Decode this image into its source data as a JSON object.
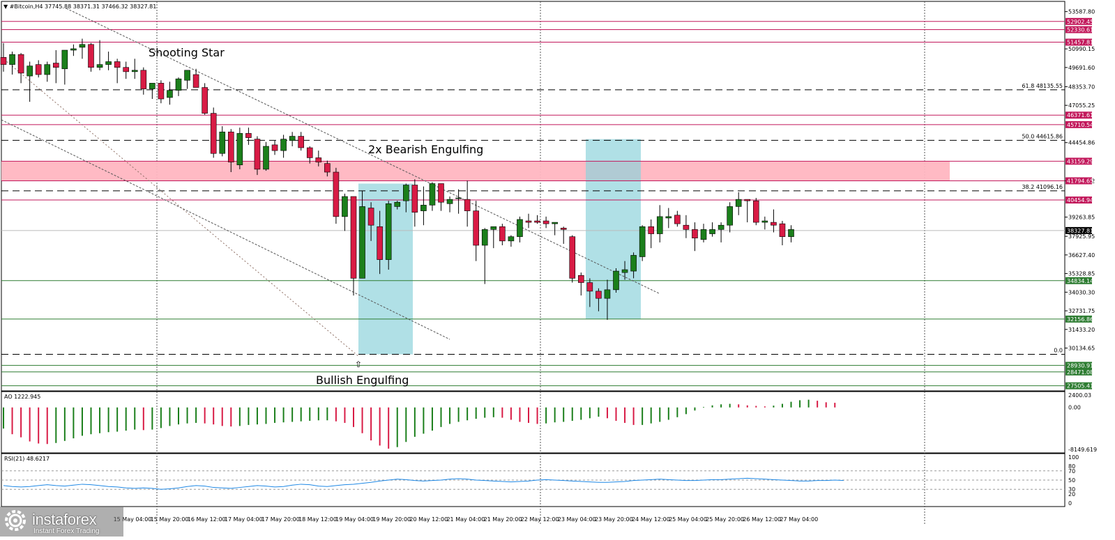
{
  "chart_data": {
    "type": "candlestick",
    "header": "#Bitcoin,H4  37745.88 38371.31 37466.32 38327.81",
    "time_labels": [
      "15 May 04:00",
      "15 May 20:00",
      "16 May 12:00",
      "17 May 04:00",
      "17 May 20:00",
      "18 May 12:00",
      "19 May 04:00",
      "19 May 20:00",
      "20 May 12:00",
      "21 May 04:00",
      "21 May 20:00",
      "22 May 12:00",
      "23 May 04:00",
      "23 May 20:00",
      "24 May 12:00",
      "25 May 04:00",
      "25 May 20:00",
      "26 May 12:00",
      "27 May 04:00"
    ],
    "price_axis": [
      "53587.80",
      "50990.15",
      "49691.60",
      "48353.70",
      "47055.25",
      "44454.86",
      "41796.02",
      "39263.85",
      "37925.95",
      "36627.40",
      "35328.85",
      "34030.30",
      "32731.75",
      "31433.20",
      "30134.65"
    ],
    "level_tags": [
      {
        "price": 52902.45,
        "label": "52902.45"
      },
      {
        "price": 52330.61,
        "label": "52330.61"
      },
      {
        "price": 51457.81,
        "label": "51457.81"
      },
      {
        "price": 46371.61,
        "label": "46371.61"
      },
      {
        "price": 45710.54,
        "label": "45710.54"
      },
      {
        "price": 43159.29,
        "label": "43159.29"
      },
      {
        "price": 41794.65,
        "label": "41794.65"
      },
      {
        "price": 40454.94,
        "label": "40454.94"
      },
      {
        "price": 34834.14,
        "label": "34834.14"
      },
      {
        "price": 32156.86,
        "label": "32156.86"
      },
      {
        "price": 28930.91,
        "label": "28930.91"
      },
      {
        "price": 28471.08,
        "label": "28471.08"
      },
      {
        "price": 27505.41,
        "label": "27505.41"
      }
    ],
    "last_price": "38327.81",
    "fib_levels": [
      {
        "price": 48135.55,
        "label": "61.8  48135.55"
      },
      {
        "price": 44615.86,
        "label": "50.0  44615.86"
      },
      {
        "price": 41096.16,
        "label": "38.2  41096.16"
      },
      {
        "price": 29700,
        "label": "0.0"
      }
    ],
    "zone": {
      "low": 41794.65,
      "high": 43159.29
    },
    "annotations": [
      "Shooting Star",
      "2x Bearish Engulfing",
      "Bullish Engulfing"
    ],
    "candles": [
      [
        50400,
        51400,
        49400,
        49900
      ],
      [
        49900,
        50800,
        49200,
        50600
      ],
      [
        50600,
        50700,
        48600,
        49300
      ],
      [
        49100,
        50100,
        47300,
        49800
      ],
      [
        49900,
        50200,
        49000,
        49200
      ],
      [
        49200,
        50100,
        48700,
        49900
      ],
      [
        50000,
        50900,
        48600,
        49700
      ],
      [
        49600,
        50900,
        48500,
        50900
      ],
      [
        50900,
        51300,
        50500,
        51000
      ],
      [
        51100,
        51700,
        50300,
        51300
      ],
      [
        51300,
        51400,
        49400,
        49700
      ],
      [
        49700,
        51600,
        49500,
        49900
      ],
      [
        49900,
        50800,
        49500,
        50100
      ],
      [
        50100,
        50300,
        48600,
        49700
      ],
      [
        49700,
        50100,
        48900,
        49400
      ],
      [
        49400,
        50300,
        48900,
        49500
      ],
      [
        49500,
        49700,
        47800,
        48200
      ],
      [
        48200,
        48600,
        47500,
        48600
      ],
      [
        48600,
        48800,
        47200,
        47500
      ],
      [
        47600,
        48700,
        47100,
        48100
      ],
      [
        48100,
        49000,
        47700,
        48900
      ],
      [
        48800,
        49500,
        48200,
        49500
      ],
      [
        49200,
        49600,
        48300,
        48300
      ],
      [
        48300,
        48600,
        46400,
        46500
      ],
      [
        46500,
        46900,
        43400,
        43700
      ],
      [
        43700,
        45600,
        43500,
        45200
      ],
      [
        45200,
        45400,
        42400,
        43100
      ],
      [
        42900,
        45500,
        42600,
        45100
      ],
      [
        45100,
        45500,
        44300,
        44800
      ],
      [
        44700,
        44900,
        42200,
        42600
      ],
      [
        42600,
        44500,
        42500,
        44200
      ],
      [
        44300,
        44600,
        43600,
        43900
      ],
      [
        43900,
        45000,
        43400,
        44700
      ],
      [
        44600,
        45200,
        44200,
        44900
      ],
      [
        44900,
        45200,
        43900,
        44100
      ],
      [
        44100,
        44200,
        43000,
        43400
      ],
      [
        43400,
        43900,
        42800,
        43100
      ],
      [
        43000,
        43200,
        42100,
        42400
      ],
      [
        42400,
        42700,
        38800,
        39300
      ],
      [
        39300,
        40900,
        38300,
        40700
      ],
      [
        40700,
        40700,
        33800,
        35000
      ],
      [
        35000,
        41100,
        35000,
        40000
      ],
      [
        39900,
        40300,
        37600,
        38700
      ],
      [
        38600,
        39700,
        35300,
        36300
      ],
      [
        36300,
        40400,
        35600,
        40200
      ],
      [
        40000,
        40400,
        39800,
        40300
      ],
      [
        40400,
        41600,
        39600,
        41500
      ],
      [
        41500,
        41900,
        38600,
        39600
      ],
      [
        39700,
        41400,
        38700,
        40100
      ],
      [
        40100,
        41700,
        39700,
        41600
      ],
      [
        41600,
        41600,
        39700,
        40300
      ],
      [
        40200,
        40700,
        39600,
        40500
      ],
      [
        40600,
        41200,
        39500,
        40600
      ],
      [
        40500,
        41800,
        38600,
        39700
      ],
      [
        39700,
        40400,
        36200,
        37300
      ],
      [
        37300,
        38500,
        34600,
        38400
      ],
      [
        38400,
        38600,
        37100,
        38600
      ],
      [
        38600,
        38800,
        37300,
        37600
      ],
      [
        37600,
        38000,
        37200,
        37900
      ],
      [
        37900,
        39300,
        37500,
        39100
      ],
      [
        39000,
        39500,
        38500,
        38900
      ],
      [
        39000,
        39400,
        38800,
        38900
      ],
      [
        39000,
        39300,
        38500,
        38800
      ],
      [
        38800,
        38900,
        38000,
        38900
      ],
      [
        38500,
        38600,
        37400,
        38400
      ],
      [
        37900,
        38000,
        34700,
        35000
      ],
      [
        35200,
        35400,
        33800,
        34700
      ],
      [
        34700,
        35000,
        33000,
        34100
      ],
      [
        34100,
        34300,
        32700,
        33600
      ],
      [
        33600,
        34900,
        32100,
        34200
      ],
      [
        34200,
        35700,
        34000,
        35500
      ],
      [
        35400,
        36200,
        34900,
        35600
      ],
      [
        35500,
        36800,
        35000,
        36600
      ],
      [
        36500,
        38700,
        36200,
        38600
      ],
      [
        38600,
        39100,
        37100,
        38100
      ],
      [
        38100,
        40100,
        37500,
        39300
      ],
      [
        39200,
        39900,
        38500,
        39300
      ],
      [
        39400,
        39700,
        38600,
        38800
      ],
      [
        38700,
        39400,
        37800,
        38400
      ],
      [
        38400,
        38900,
        36900,
        37800
      ],
      [
        37700,
        38800,
        37500,
        38400
      ],
      [
        38100,
        38900,
        37900,
        38400
      ],
      [
        38400,
        38900,
        37500,
        38700
      ],
      [
        38700,
        40300,
        38200,
        40000
      ],
      [
        40000,
        41000,
        39400,
        40500
      ],
      [
        40500,
        40500,
        38900,
        40400
      ],
      [
        40400,
        40600,
        38700,
        38900
      ],
      [
        38900,
        39300,
        38400,
        39000
      ],
      [
        38900,
        39800,
        38200,
        38700
      ],
      [
        38800,
        39000,
        37300,
        37900
      ],
      [
        37900,
        38700,
        37500,
        38400
      ]
    ],
    "ao": {
      "label": "AO 1222.945",
      "axis": [
        "2400.03",
        "0.00",
        "-8149.619"
      ],
      "values": [
        -4100,
        -5200,
        -5800,
        -6600,
        -7000,
        -7100,
        -6900,
        -6500,
        -6000,
        -5500,
        -5200,
        -5000,
        -4800,
        -4700,
        -4500,
        -4300,
        -4400,
        -4300,
        -4000,
        -3600,
        -3300,
        -3100,
        -3000,
        -3100,
        -3300,
        -3600,
        -3700,
        -3600,
        -3400,
        -3300,
        -3200,
        -3000,
        -2900,
        -2800,
        -2700,
        -2600,
        -2500,
        -2500,
        -2700,
        -3000,
        -3800,
        -5000,
        -6400,
        -7400,
        -8000,
        -7700,
        -6700,
        -5700,
        -5100,
        -4500,
        -3800,
        -3200,
        -2800,
        -2500,
        -2200,
        -2000,
        -1900,
        -2000,
        -2400,
        -2800,
        -3000,
        -3200,
        -3100,
        -2900,
        -2800,
        -2600,
        -2400,
        -2100,
        -1800,
        -2100,
        -2600,
        -3000,
        -3400,
        -3400,
        -3100,
        -2800,
        -2400,
        -1900,
        -1300,
        -600,
        100,
        400,
        600,
        700,
        600,
        400,
        300,
        200,
        350,
        700,
        1100,
        1400,
        1500,
        1300,
        1000,
        900
      ]
    },
    "rsi": {
      "label": "RSI(21) 48.6217",
      "axis": [
        "100",
        "80",
        "70",
        "50",
        "30",
        "20",
        "0"
      ],
      "values": [
        38,
        36,
        35,
        36,
        38,
        40,
        38,
        37,
        39,
        41,
        40,
        38,
        36,
        35,
        33,
        32,
        33,
        32,
        30,
        31,
        33,
        36,
        38,
        37,
        34,
        33,
        32,
        34,
        36,
        38,
        37,
        35,
        36,
        39,
        41,
        40,
        37,
        36,
        38,
        40,
        41,
        43,
        45,
        48,
        50,
        52,
        51,
        49,
        48,
        49,
        50,
        52,
        53,
        52,
        50,
        49,
        48,
        47,
        46,
        47,
        48,
        50,
        51,
        50,
        49,
        48,
        47,
        46,
        45,
        45,
        46,
        47,
        49,
        50,
        51,
        52,
        51,
        50,
        49,
        49,
        50,
        51,
        51,
        52,
        53,
        54,
        53,
        52,
        51,
        50,
        49,
        48,
        48,
        49,
        49,
        50,
        49
      ]
    }
  },
  "logo": {
    "title": "instaforex",
    "subtitle": "Instant Forex Trading"
  }
}
